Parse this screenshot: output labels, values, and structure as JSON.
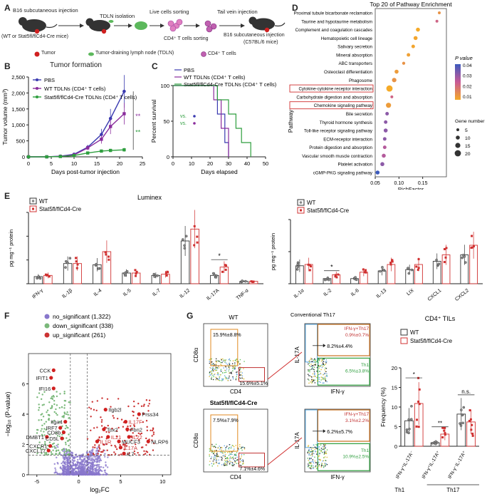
{
  "panels": {
    "A": {
      "label": "A",
      "texts": {
        "b16_sc_top": "B16 subcutaneous injection",
        "tdln_isolation": "TDLN isolation",
        "live_sorting": "Live cells sorting",
        "tail_vein": "Tail vein injection",
        "mice_group": "(WT or Stat5fl/flCd4-Cre mice)",
        "cd4_sorting": "CD4⁺ T cells sorting",
        "b16_sc_right": "B16  subcutaneous injection",
        "recipient": "(C57BL/6 mice)",
        "legend_tumor": "Tumor",
        "legend_tdln": "Tumor-draining lymph node (TDLN)",
        "legend_cd4": "CD4⁺ T cells"
      }
    },
    "B": {
      "label": "B",
      "chart_data": {
        "type": "line",
        "title": "Tumor formation",
        "xlabel": "Days post-tumor injection",
        "ylabel": "Tumor volume (mm³)",
        "xlim": [
          0,
          25
        ],
        "ylim": [
          0,
          2500
        ],
        "xticks": [
          "0",
          "5",
          "10",
          "15",
          "20",
          "25"
        ],
        "yticks": [
          "0",
          "500",
          "1,000",
          "1,500",
          "2,000",
          "2,500"
        ],
        "x": [
          0,
          4,
          7,
          10,
          13,
          16,
          18,
          21
        ],
        "series": [
          {
            "name": "PBS",
            "values": [
              0,
              0,
              20,
              80,
              300,
              700,
              1200,
              2050
            ],
            "color": "#3a3ab0"
          },
          {
            "name": "WT TDLNs (CD4⁺ T cells)",
            "values": [
              0,
              0,
              15,
              60,
              280,
              550,
              950,
              1350
            ],
            "color": "#8a2c9c"
          },
          {
            "name": "Stat5fl/flCd4-Cre TDLNs (CD4⁺ T cells)",
            "values": [
              0,
              0,
              10,
              40,
              120,
              180,
              200,
              220
            ],
            "color": "#2e9e3e"
          }
        ],
        "significance": "**"
      }
    },
    "C": {
      "label": "C",
      "chart_data": {
        "type": "line",
        "xlabel": "Days elapsed",
        "ylabel": "Percent survival",
        "xlim": [
          0,
          50
        ],
        "ylim": [
          0,
          100
        ],
        "xticks": [
          "0",
          "10",
          "20",
          "30",
          "40",
          "50"
        ],
        "yticks": [
          "0",
          "50",
          "100"
        ],
        "series": [
          {
            "name": "PBS",
            "color": "#3a3ab0",
            "steps": [
              [
                0,
                100
              ],
              [
                24,
                100
              ],
              [
                24,
                60
              ],
              [
                28,
                60
              ],
              [
                28,
                20
              ],
              [
                30,
                20
              ],
              [
                30,
                0
              ]
            ]
          },
          {
            "name": "WT TDLNs (CD4⁺ T cells)",
            "color": "#8a2c9c",
            "steps": [
              [
                0,
                100
              ],
              [
                22,
                100
              ],
              [
                22,
                80
              ],
              [
                26,
                80
              ],
              [
                26,
                40
              ],
              [
                30,
                40
              ],
              [
                30,
                0
              ]
            ]
          },
          {
            "name": "Stat5fl/flCd4-Cre TDLNs (CD4⁺ T cells)",
            "color": "#2e9e3e",
            "steps": [
              [
                0,
                100
              ],
              [
                24,
                100
              ],
              [
                24,
                80
              ],
              [
                30,
                80
              ],
              [
                30,
                60
              ],
              [
                34,
                60
              ],
              [
                34,
                40
              ],
              [
                37,
                40
              ],
              [
                37,
                20
              ],
              [
                42,
                20
              ],
              [
                42,
                0
              ]
            ]
          }
        ],
        "annotations": [
          "vs.",
          "vs."
        ]
      }
    },
    "D": {
      "label": "D",
      "chart_data": {
        "type": "scatter",
        "title": "Top 20 of Pathway Enrichment",
        "xlabel": "RichFactor",
        "ylabel": "Pathway",
        "xlim": [
          0.05,
          0.2
        ],
        "xticks": [
          "0.05",
          "0.10",
          "0.15"
        ],
        "categories": [
          "Proximal tubule bicarbonate reclamation",
          "Taurine and hypotaurine metabolism",
          "Complement and coagulation cascades",
          "Hematopoietic cell lineage",
          "Salivary secretion",
          "Mineral absorption",
          "ABC transporters",
          "Osteoclast differentiation",
          "Phagosome",
          "Cytokine-cytokine receptor interaction",
          "Carbohydrate digestion and absorption",
          "Chemokine signaling pathway",
          "Bile secretion",
          "Thyroid hormone synthesis",
          "Toll-like receptor signaling pathway",
          "ECM-receptor interaction",
          "Protein digestion and absorption",
          "Vascular smooth muscle contraction",
          "Platelet activation",
          "cGMP-PKG signaling pathway"
        ],
        "x": [
          0.185,
          0.18,
          0.14,
          0.135,
          0.13,
          0.12,
          0.11,
          0.095,
          0.09,
          0.08,
          0.085,
          0.078,
          0.075,
          0.072,
          0.072,
          0.07,
          0.07,
          0.068,
          0.065,
          0.055
        ],
        "gene_number": [
          5,
          5,
          10,
          10,
          8,
          8,
          6,
          10,
          12,
          20,
          5,
          15,
          8,
          8,
          10,
          8,
          8,
          10,
          10,
          10
        ],
        "p_value": [
          0.01,
          0.02,
          0.005,
          0.006,
          0.006,
          0.007,
          0.01,
          0.008,
          0.01,
          0.005,
          0.02,
          0.008,
          0.03,
          0.03,
          0.03,
          0.03,
          0.025,
          0.025,
          0.03,
          0.04
        ],
        "highlighted": [
          "Cytokine-cytokine receptor interaction",
          "Chemokine signaling pathway"
        ],
        "colorbar": {
          "title": "P value",
          "ticks": [
            "0.04",
            "0.03",
            "0.02",
            "0.01"
          ]
        },
        "size_legend": {
          "title": "Gene number",
          "values": [
            "5",
            "10",
            "15",
            "20"
          ]
        }
      }
    },
    "E": {
      "label": "E",
      "left": {
        "chart_data": {
          "type": "bar",
          "title": "Luminex",
          "ylabel": "pg mg⁻¹ protein",
          "ylim": [
            0,
            3
          ],
          "categories": [
            "IFN-γ",
            "IL-1β",
            "IL-4",
            "IL-5",
            "IL-7",
            "IL-12",
            "IL-17A",
            "TNF-α"
          ],
          "series": [
            {
              "name": "WT",
              "values": [
                0.3,
                0.85,
                0.8,
                0.45,
                0.35,
                1.8,
                0.35,
                0.1
              ]
            },
            {
              "name": "Stat5fl/flCd4-Cre",
              "values": [
                0.35,
                0.85,
                1.35,
                0.45,
                0.4,
                2.3,
                0.7,
                0.1
              ]
            }
          ],
          "significance": [
            {
              "category": "IL-17A",
              "mark": "*"
            }
          ]
        }
      },
      "right": {
        "chart_data": {
          "type": "bar",
          "ylabel": "pg mg⁻¹ protein",
          "ylim": [
            0,
            100
          ],
          "categories": [
            "IL-1α",
            "IL-2",
            "IL-6",
            "IL-13",
            "LIX",
            "CXCL1",
            "CXCL2"
          ],
          "series": [
            {
              "name": "WT",
              "values": [
                28,
                8,
                8,
                20,
                22,
                35,
                45
              ]
            },
            {
              "name": "Stat5fl/flCd4-Cre",
              "values": [
                30,
                14,
                18,
                30,
                30,
                45,
                60
              ]
            }
          ],
          "significance": [
            {
              "category": "IL-2",
              "mark": "*"
            }
          ]
        }
      },
      "legend": {
        "wt": "WT",
        "ko": "Stat5fl/flCd4-Cre"
      }
    },
    "F": {
      "label": "F",
      "chart_data": {
        "type": "scatter",
        "xlabel": "log₂FC",
        "ylabel": "−log₁₀ (P-value)",
        "xlim": [
          -6,
          11
        ],
        "ylim": [
          0,
          8
        ],
        "xticks": [
          "-5",
          "0",
          "5",
          "10"
        ],
        "yticks": [
          "0",
          "2",
          "4",
          "6"
        ],
        "legend": [
          {
            "name": "no_significant (1,322)",
            "color": "#8877cc"
          },
          {
            "name": "down_significant (338)",
            "color": "#7ab87a"
          },
          {
            "name": "up_significant (261)",
            "color": "#cc3333"
          }
        ],
        "gene_labels": [
          {
            "gene": "CCK",
            "x": -3.0,
            "y": 6.9,
            "color": "#222"
          },
          {
            "gene": "IFIT1",
            "x": -3.3,
            "y": 6.4,
            "color": "#222"
          },
          {
            "gene": "IFI16",
            "x": -3.0,
            "y": 5.7,
            "color": "#222"
          },
          {
            "gene": "Itga4",
            "x": -1.6,
            "y": 3.5,
            "color": "#222"
          },
          {
            "gene": "IRF7",
            "x": -2.2,
            "y": 3.1,
            "color": "#222"
          },
          {
            "gene": "CD8b",
            "x": -1.8,
            "y": 2.8,
            "color": "#222"
          },
          {
            "gene": "DMBT1",
            "x": -3.8,
            "y": 2.5,
            "color": "#222"
          },
          {
            "gene": "CD5L",
            "x": -2.0,
            "y": 2.4,
            "color": "#222"
          },
          {
            "gene": "CXCR1",
            "x": -3.4,
            "y": 1.9,
            "color": "#222"
          },
          {
            "gene": "CXCL17",
            "x": -3.6,
            "y": 1.6,
            "color": "#222"
          },
          {
            "gene": "Itgb2l",
            "x": 3.2,
            "y": 4.3,
            "color": "#222"
          },
          {
            "gene": "Prss34",
            "x": 7.2,
            "y": 4.0,
            "color": "#222"
          },
          {
            "gene": "IL17F",
            "x": 5.6,
            "y": 3.5,
            "color": "#cc3333"
          },
          {
            "gene": "Tox2",
            "x": 3.0,
            "y": 3.0,
            "color": "#222"
          },
          {
            "gene": "Fbn2",
            "x": 5.8,
            "y": 3.0,
            "color": "#222"
          },
          {
            "gene": "IL21",
            "x": 3.5,
            "y": 2.5,
            "color": "#cc3333"
          },
          {
            "gene": "IL22",
            "x": 6.0,
            "y": 2.5,
            "color": "#cc3333"
          },
          {
            "gene": "IL1R",
            "x": 2.2,
            "y": 2.2,
            "color": "#cc3333"
          },
          {
            "gene": "MUCF3",
            "x": 4.8,
            "y": 2.2,
            "color": "#222"
          },
          {
            "gene": "NLRP6",
            "x": 8.3,
            "y": 2.2,
            "color": "#222"
          },
          {
            "gene": "IL17A",
            "x": 5.0,
            "y": 1.8,
            "color": "#cc3333"
          },
          {
            "gene": "IL7",
            "x": 5.4,
            "y": 1.4,
            "color": "#222"
          }
        ]
      }
    },
    "G": {
      "label": "G",
      "wt_title": "WT",
      "ko_title": "Stat5fl/flCd4-Cre",
      "conv_th17": "Conventional Th17",
      "wt": {
        "cd8_gate": "15.9%±8.8%",
        "cd4_gate": "15.6%±5.1%",
        "th17_dp_label": "IFN-γ+Th17",
        "th17_dp": "0.9%±0.7%",
        "th17": "8.2%±4.4%",
        "th1_label": "Th1",
        "th1": "6.5%±3.8%"
      },
      "ko": {
        "cd8_gate": "7.5%±7.9%",
        "cd4_gate": "7.1%±4.6%",
        "th17_dp_label": "IFN-γ+Th17",
        "th17_dp": "3.1%±2.2%",
        "th17": "6.2%±5.7%",
        "th1_label": "Th1",
        "th1": "10.9%±2.5%"
      },
      "axes": {
        "cd8": "CD8α",
        "cd4": "CD4",
        "il17a": "IL-17A",
        "ifng": "IFN-γ"
      },
      "chart_data": {
        "type": "bar",
        "title": "CD4⁺ TILs",
        "ylabel": "Frequency (%)",
        "ylim": [
          0,
          20
        ],
        "yticks": [
          "0",
          "5",
          "10",
          "15",
          "20"
        ],
        "categories": [
          "IFN-γ⁺IL-17A⁻",
          "IFN-γ⁺IL-17A⁺",
          "IFN-γ⁻IL-17A⁺"
        ],
        "groups": [
          "Th1",
          "Th17"
        ],
        "series": [
          {
            "name": "WT",
            "values": [
              6.5,
              0.9,
              8.2
            ]
          },
          {
            "name": "Stat5fl/flCd4-Cre",
            "values": [
              10.9,
              3.1,
              6.2
            ]
          }
        ],
        "significance": [
          "*",
          "**",
          "n.s."
        ]
      }
    }
  }
}
